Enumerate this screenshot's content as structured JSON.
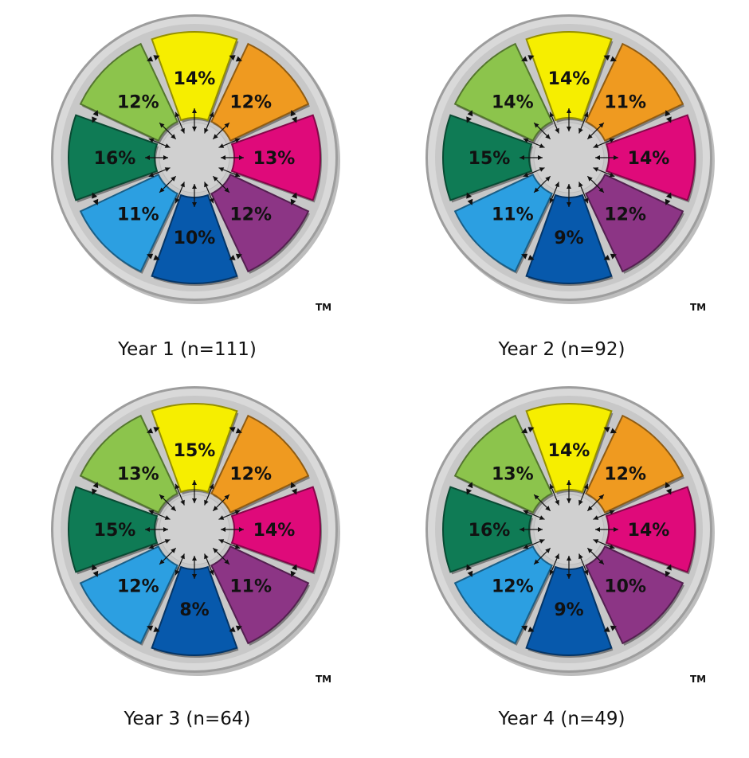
{
  "segment_colors": [
    "#f6ee00",
    "#ef9a20",
    "#df0a7a",
    "#8c3585",
    "#0759ac",
    "#2c9fe1",
    "#0f7b55",
    "#8cc44c"
  ],
  "trademark": "TM",
  "chart_data": [
    {
      "type": "pie",
      "caption": "Year 1 (n=111)",
      "categories": [
        "yellow",
        "orange",
        "magenta",
        "purple",
        "dark-blue",
        "light-blue",
        "dark-green",
        "light-green"
      ],
      "labels": [
        "14%",
        "12%",
        "13%",
        "12%",
        "10%",
        "11%",
        "16%",
        "12%"
      ],
      "values": [
        14,
        12,
        13,
        12,
        10,
        11,
        16,
        12
      ]
    },
    {
      "type": "pie",
      "caption": "Year 2 (n=92)",
      "categories": [
        "yellow",
        "orange",
        "magenta",
        "purple",
        "dark-blue",
        "light-blue",
        "dark-green",
        "light-green"
      ],
      "labels": [
        "14%",
        "11%",
        "14%",
        "12%",
        "9%",
        "11%",
        "15%",
        "14%"
      ],
      "values": [
        14,
        11,
        14,
        12,
        9,
        11,
        15,
        14
      ]
    },
    {
      "type": "pie",
      "caption": "Year 3 (n=64)",
      "categories": [
        "yellow",
        "orange",
        "magenta",
        "purple",
        "dark-blue",
        "light-blue",
        "dark-green",
        "light-green"
      ],
      "labels": [
        "15%",
        "12%",
        "14%",
        "11%",
        "8%",
        "12%",
        "15%",
        "13%"
      ],
      "values": [
        15,
        12,
        14,
        11,
        8,
        12,
        15,
        13
      ]
    },
    {
      "type": "pie",
      "caption": "Year 4 (n=49)",
      "categories": [
        "yellow",
        "orange",
        "magenta",
        "purple",
        "dark-blue",
        "light-blue",
        "dark-green",
        "light-green"
      ],
      "labels": [
        "14%",
        "12%",
        "14%",
        "10%",
        "9%",
        "12%",
        "16%",
        "13%"
      ],
      "values": [
        14,
        12,
        14,
        10,
        9,
        12,
        16,
        13
      ]
    }
  ]
}
